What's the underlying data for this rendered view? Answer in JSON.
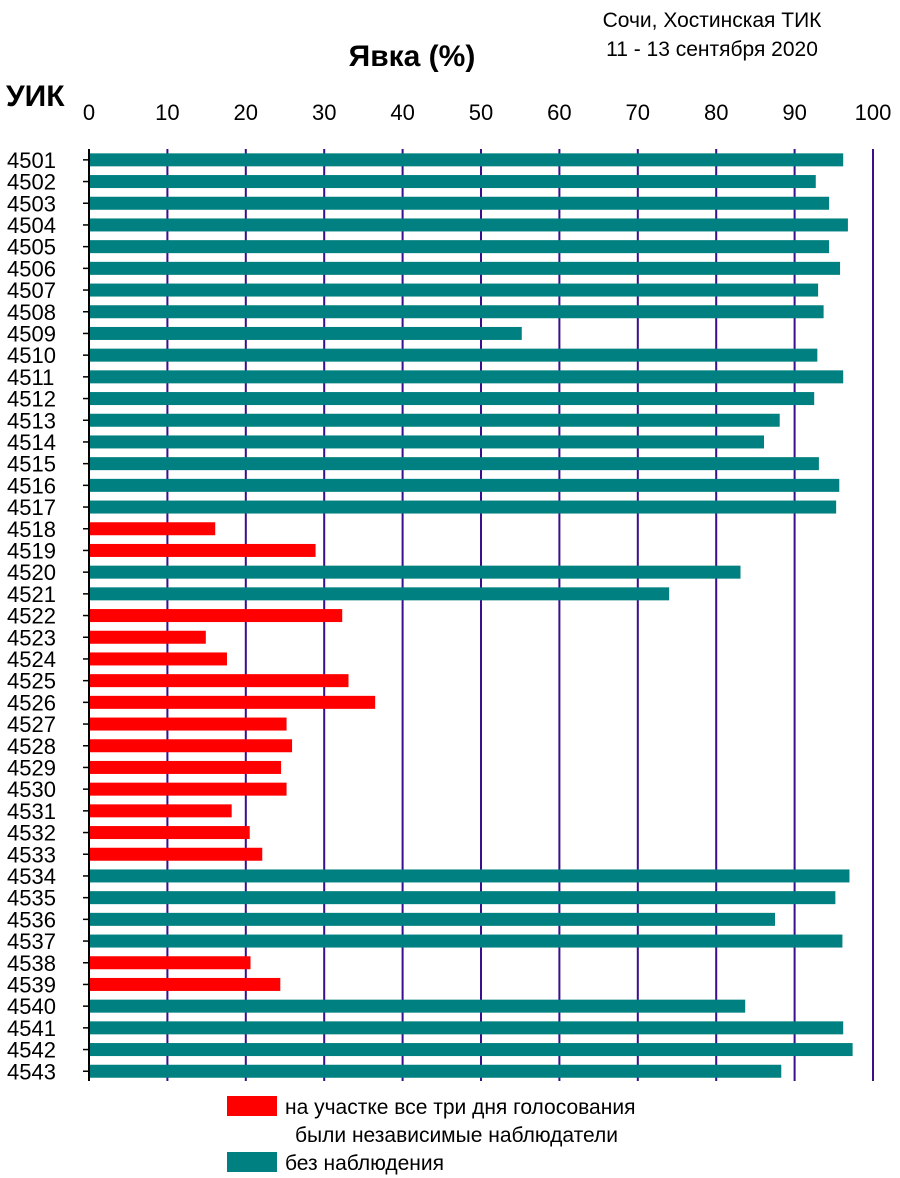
{
  "header": {
    "place": "Сочи, Хостинская ТИК",
    "dates": "11 - 13 сентября 2020"
  },
  "colors": {
    "observed": "#ff0000",
    "unobserved": "#008080",
    "grid": "#3a0e8c"
  },
  "legend": {
    "observed_line1": "на участке все три дня голосования",
    "observed_line2": "были независимые наблюдатели",
    "unobserved": "без наблюдения"
  },
  "chart_data": {
    "type": "bar",
    "orientation": "horizontal",
    "title": "Явка (%)",
    "category_axis_label": "УИК",
    "xlim": [
      0,
      100
    ],
    "x_ticks": [
      0,
      10,
      20,
      30,
      40,
      50,
      60,
      70,
      80,
      90,
      100
    ],
    "grid": true,
    "legend_position": "bottom",
    "series": [
      {
        "name": "на участке все три дня голосования были независимые наблюдатели",
        "color": "#ff0000"
      },
      {
        "name": "без наблюдения",
        "color": "#008080"
      }
    ],
    "categories": [
      "4501",
      "4502",
      "4503",
      "4504",
      "4505",
      "4506",
      "4507",
      "4508",
      "4509",
      "4510",
      "4511",
      "4512",
      "4513",
      "4514",
      "4515",
      "4516",
      "4517",
      "4518",
      "4519",
      "4520",
      "4521",
      "4522",
      "4523",
      "4524",
      "4525",
      "4526",
      "4527",
      "4528",
      "4529",
      "4530",
      "4531",
      "4532",
      "4533",
      "4534",
      "4535",
      "4536",
      "4537",
      "4538",
      "4539",
      "4540",
      "4541",
      "4542",
      "4543"
    ],
    "values": [
      96.2,
      92.7,
      94.4,
      96.8,
      94.4,
      95.8,
      93.0,
      93.7,
      55.2,
      92.9,
      96.2,
      92.5,
      88.1,
      86.1,
      93.1,
      95.7,
      95.3,
      16.1,
      28.9,
      83.1,
      74.0,
      32.3,
      14.9,
      17.6,
      33.1,
      36.5,
      25.2,
      25.9,
      24.5,
      25.2,
      18.2,
      20.5,
      22.1,
      97.0,
      95.2,
      87.5,
      96.1,
      20.6,
      24.4,
      83.7,
      96.2,
      97.4,
      88.3
    ],
    "observed": [
      false,
      false,
      false,
      false,
      false,
      false,
      false,
      false,
      false,
      false,
      false,
      false,
      false,
      false,
      false,
      false,
      false,
      true,
      true,
      false,
      false,
      true,
      true,
      true,
      true,
      true,
      true,
      true,
      true,
      true,
      true,
      true,
      true,
      false,
      false,
      false,
      false,
      true,
      true,
      false,
      false,
      false,
      false
    ]
  }
}
